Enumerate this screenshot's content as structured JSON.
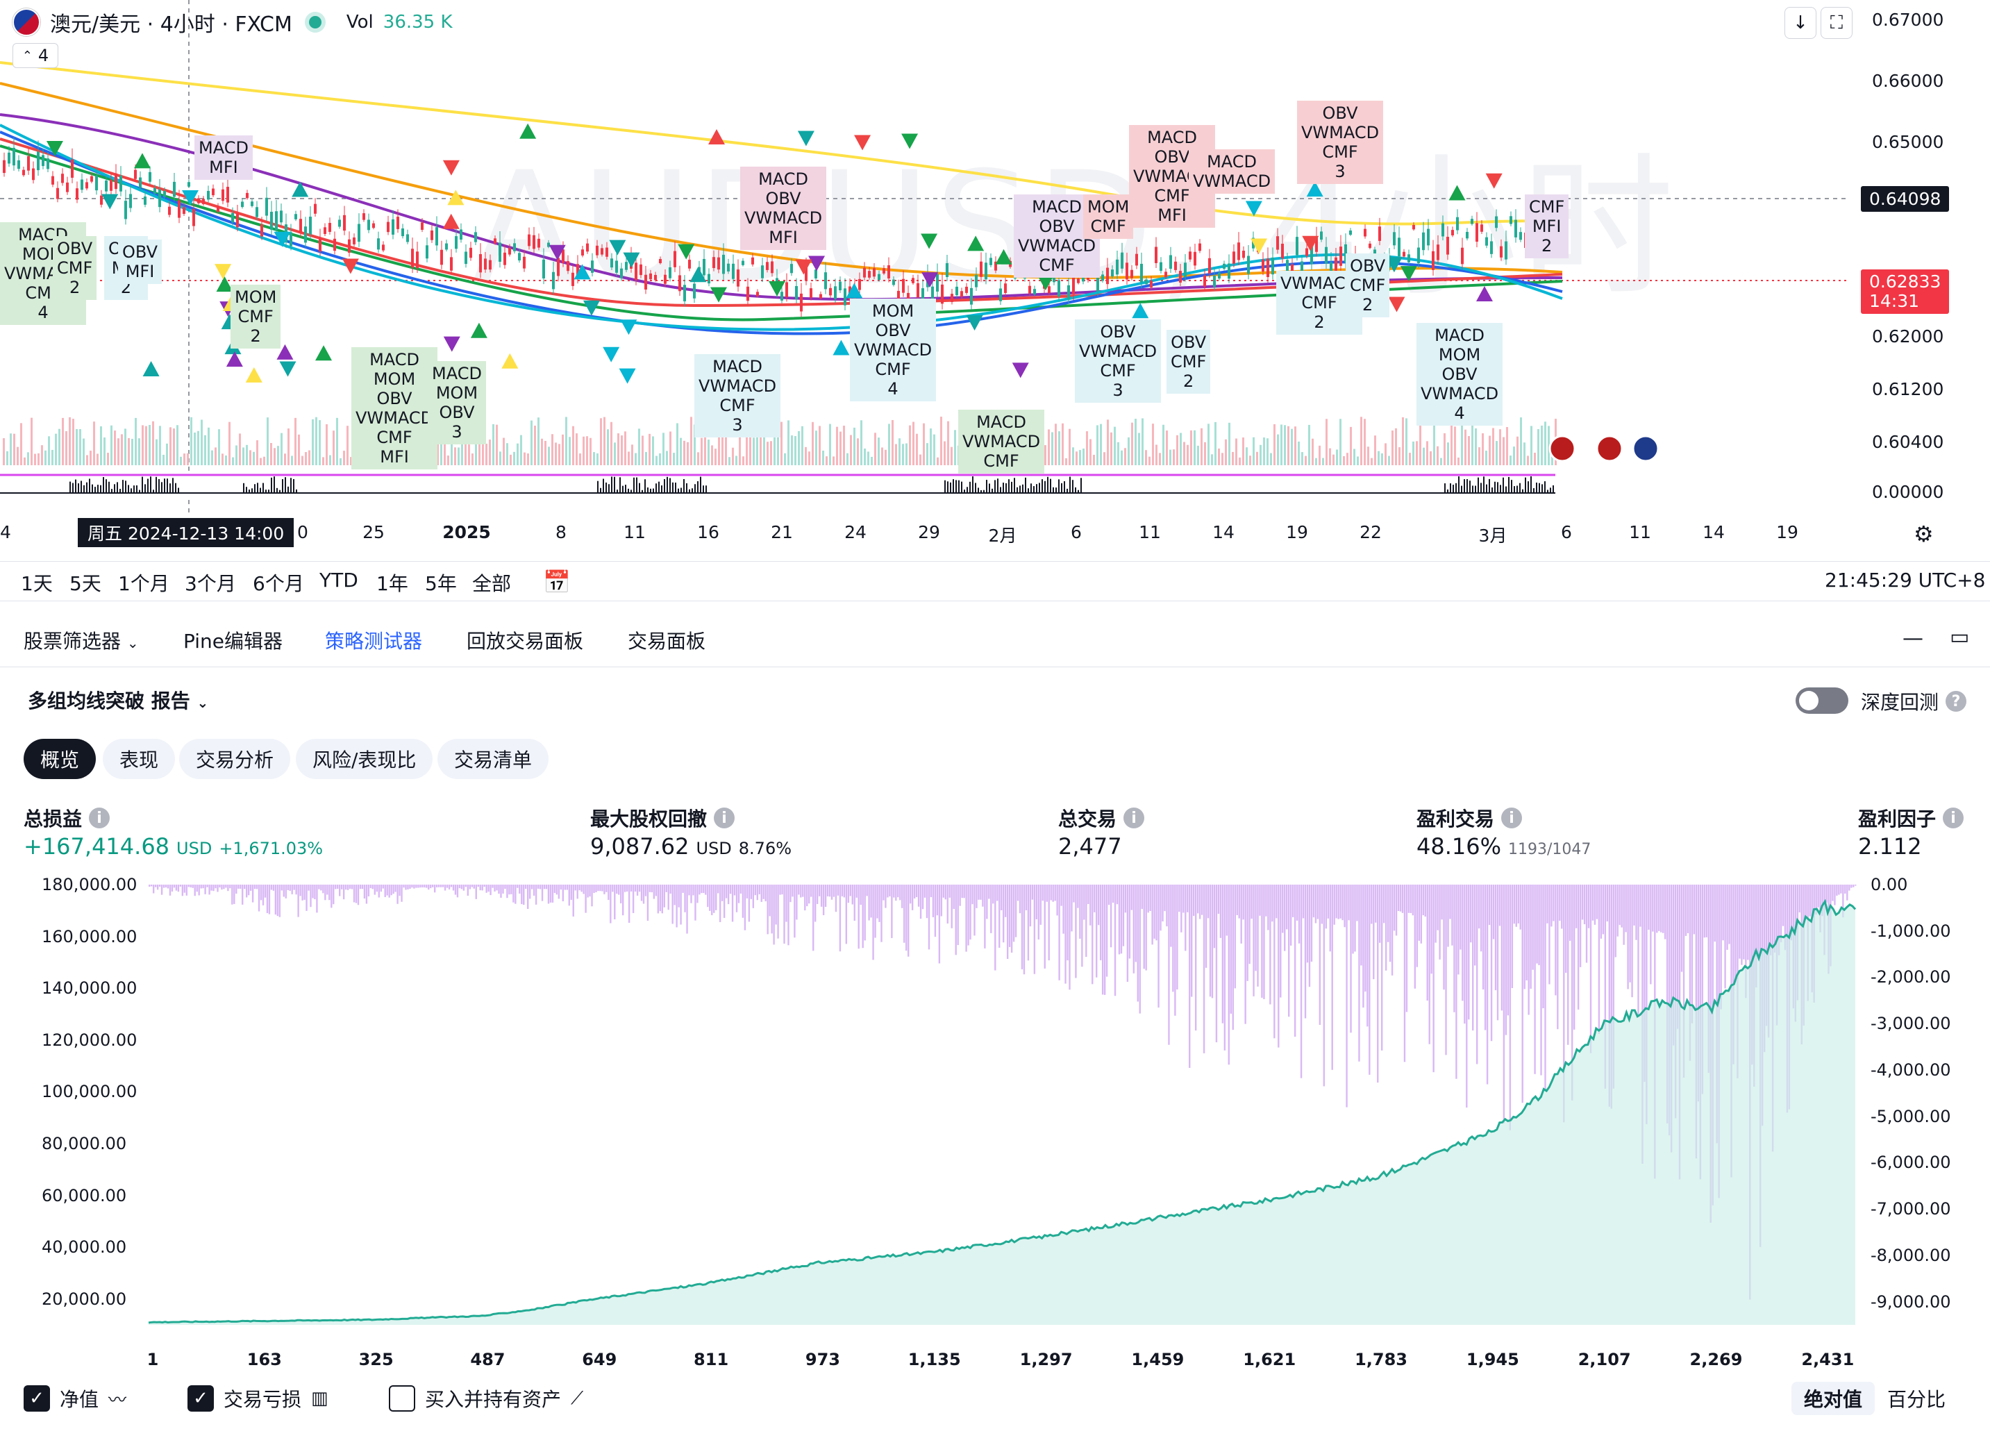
{
  "header": {
    "title": "澳元/美元 · 4小时 · FXCM",
    "vol_label": "Vol",
    "vol_value": "36.35 K",
    "collapse_count": "4",
    "watermark": "AUDUSD, 4小时"
  },
  "price_axis": {
    "labels": [
      "0.67000",
      "0.66000",
      "0.65000",
      "0.62000",
      "0.61200",
      "0.60400",
      "0.00000"
    ],
    "crosshair_price": "0.64098",
    "last_price": "0.62833",
    "countdown": "14:31",
    "line_color": "#f23645"
  },
  "time_axis": {
    "labels": [
      "4",
      "0",
      "25",
      "2025",
      "8",
      "11",
      "16",
      "21",
      "24",
      "29",
      "2月",
      "6",
      "11",
      "14",
      "19",
      "22",
      "3月",
      "6",
      "11",
      "14",
      "19"
    ],
    "crosshair_date": "周五 2024-12-13   14:00"
  },
  "signal_labels": [
    {
      "lines": [
        "MACD",
        "MOM",
        "VWMACD",
        "CMF",
        "4"
      ]
    },
    {
      "lines": [
        "OBV",
        "CMF",
        "2"
      ]
    },
    {
      "lines": [
        "OBV",
        "MFI",
        "2"
      ]
    },
    {
      "lines": [
        "MOM",
        "CMF",
        "2"
      ]
    },
    {
      "lines": [
        "MACD",
        "MOM",
        "OBV",
        "VWMACD",
        "CMF",
        "MFI"
      ]
    },
    {
      "lines": [
        "MACD",
        "MOM",
        "OBV",
        "3"
      ]
    },
    {
      "lines": [
        "MACD",
        "VWMACD",
        "CMF",
        "3"
      ]
    },
    {
      "lines": [
        "MOM",
        "OBV",
        "VWMACD",
        "CMF",
        "4"
      ]
    },
    {
      "lines": [
        "MACD",
        "VWMACD",
        "CMF"
      ]
    },
    {
      "lines": [
        "OBV",
        "VWMACD",
        "CMF",
        "3"
      ]
    },
    {
      "lines": [
        "OBV",
        "CMF",
        "2"
      ]
    },
    {
      "lines": [
        "VWMACD",
        "CMF",
        "2"
      ]
    },
    {
      "lines": [
        "OBV",
        "CMF",
        "2"
      ]
    },
    {
      "lines": [
        "MACD",
        "MOM",
        "OBV",
        "VWMACD",
        "4"
      ]
    },
    {
      "lines": [
        "OBV",
        "VWMACD",
        "CMF",
        "3"
      ]
    },
    {
      "lines": [
        "MACD",
        "OBV",
        "VWMACD",
        "CMF",
        "MFI"
      ]
    },
    {
      "lines": [
        "MACD",
        "VWMACD"
      ]
    },
    {
      "lines": [
        "MACD",
        "MFI"
      ]
    },
    {
      "lines": [
        "MACD",
        "OBV",
        "VWMACD",
        "MFI"
      ]
    },
    {
      "lines": [
        "MACD",
        "OBV",
        "VWMACD",
        "CMF"
      ]
    },
    {
      "lines": [
        "MOM",
        "CMF"
      ]
    },
    {
      "lines": [
        "OBV",
        "MFI"
      ]
    },
    {
      "lines": [
        "CMF",
        "MFI",
        "2"
      ]
    }
  ],
  "range_toolbar": {
    "ranges": [
      "1天",
      "5天",
      "1个月",
      "3个月",
      "6个月",
      "YTD",
      "1年",
      "5年",
      "全部"
    ],
    "clock": "21:45:29 UTC+8"
  },
  "panel_tabs": [
    "股票筛选器",
    "Pine编辑器",
    "策略测试器",
    "回放交易面板",
    "交易面板"
  ],
  "report": {
    "title": "多组均线突破 报告",
    "deep_backtest_label": "深度回测",
    "sub_tabs": [
      "概览",
      "表现",
      "交易分析",
      "风险/表现比",
      "交易清单"
    ]
  },
  "metrics": {
    "net_profit": {
      "label": "总损益",
      "value": "+167,414.68",
      "unit": "USD",
      "pct": "+1,671.03%"
    },
    "max_drawdown": {
      "label": "最大股权回撤",
      "value": "9,087.62",
      "unit": "USD",
      "pct": "8.76%"
    },
    "total_trades": {
      "label": "总交易",
      "value": "2,477"
    },
    "profitable": {
      "label": "盈利交易",
      "value": "48.16%",
      "sub": "1193/1047"
    },
    "profit_factor": {
      "label": "盈利因子",
      "value": "2.112"
    }
  },
  "chart_data": {
    "type": "area",
    "y_left_labels": [
      "180,000.00",
      "160,000.00",
      "140,000.00",
      "120,000.00",
      "100,000.00",
      "80,000.00",
      "60,000.00",
      "40,000.00",
      "20,000.00"
    ],
    "y_right_labels": [
      "0.00",
      "-1,000.00",
      "-2,000.00",
      "-3,000.00",
      "-4,000.00",
      "-5,000.00",
      "-6,000.00",
      "-7,000.00",
      "-8,000.00",
      "-9,000.00"
    ],
    "x_labels": [
      "1",
      "163",
      "325",
      "487",
      "649",
      "811",
      "973",
      "1,135",
      "1,297",
      "1,459",
      "1,621",
      "1,783",
      "1,945",
      "2,107",
      "2,269",
      "2,431"
    ],
    "equity_ylim": [
      10000,
      180000
    ],
    "drawdown_ylim": [
      -9500,
      0
    ],
    "equity_x": [
      1,
      163,
      325,
      487,
      560,
      649,
      811,
      973,
      1135,
      1297,
      1459,
      1621,
      1783,
      1945,
      2010,
      2107,
      2200,
      2269,
      2330,
      2431,
      2477
    ],
    "equity_y": [
      11000,
      11500,
      12000,
      13500,
      16000,
      20000,
      26000,
      34000,
      38000,
      44000,
      51000,
      58000,
      67000,
      84000,
      96000,
      125000,
      135000,
      132000,
      152000,
      171000,
      170000
    ],
    "drawdown_x": [
      1,
      100,
      200,
      300,
      487,
      649,
      811,
      973,
      1135,
      1297,
      1400,
      1450,
      1621,
      1783,
      1800,
      1945,
      2107,
      2180,
      2269,
      2330,
      2400,
      2431,
      2477
    ],
    "drawdown_y": [
      -200,
      -400,
      -800,
      -500,
      -300,
      -900,
      -1200,
      -1500,
      -1800,
      -2200,
      -2600,
      -3700,
      -4500,
      -5000,
      -3600,
      -5800,
      -4800,
      -6400,
      -7400,
      -9200,
      -3600,
      -2200,
      -100
    ],
    "equity_color": "#22ab94",
    "drawdown_color": "#d9b8f5"
  },
  "legend": {
    "items": [
      {
        "label": "净值",
        "checked": true
      },
      {
        "label": "交易亏损",
        "checked": true
      },
      {
        "label": "买入并持有资产",
        "checked": false
      }
    ],
    "modes": [
      "绝对值",
      "百分比"
    ]
  }
}
